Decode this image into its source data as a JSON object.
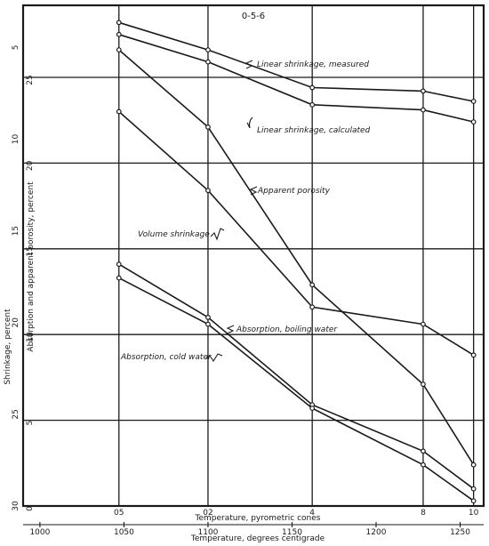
{
  "chart_data": {
    "type": "line",
    "title": "0-5-6",
    "xlabel_top": "Temperature, pyrometric cones",
    "xlabel_bottom": "Temperature, degrees centigrade",
    "ylabel_shrinkage": "Shrinkage, percent",
    "ylabel_absorption": "Absorption and apparent porosity, percent",
    "x_range": [
      990,
      1264
    ],
    "cone_ticks": [
      {
        "label": "05",
        "x": 1047
      },
      {
        "label": "02",
        "x": 1100
      },
      {
        "label": "4",
        "x": 1162
      },
      {
        "label": "8",
        "x": 1228
      },
      {
        "label": "10",
        "x": 1258
      }
    ],
    "temp_ticks": [
      "1000",
      "1050",
      "1100",
      "1150",
      "1200",
      "1250"
    ],
    "absorption_ticks": [
      "0",
      "5",
      "10",
      "15",
      "20",
      "25"
    ],
    "absorption_range": [
      0,
      29.2
    ],
    "shrinkage_ticks": [
      "5",
      "10",
      "15",
      "20",
      "25",
      "30"
    ],
    "shrinkage_range": [
      2.7,
      30.0
    ],
    "grid": true,
    "series": [
      {
        "name": "Linear shrinkage, measured",
        "scale": "absorption",
        "x": [
          1047,
          1100,
          1162,
          1228,
          1258
        ],
        "y": [
          28.2,
          26.6,
          24.4,
          24.2,
          23.6
        ]
      },
      {
        "name": "Linear shrinkage, calculated",
        "scale": "absorption",
        "x": [
          1047,
          1100,
          1162,
          1228,
          1258
        ],
        "y": [
          27.5,
          25.9,
          23.4,
          23.1,
          22.4
        ]
      },
      {
        "name": "Apparent porosity",
        "scale": "absorption",
        "x": [
          1047,
          1100,
          1162,
          1228,
          1258
        ],
        "y": [
          26.6,
          22.1,
          12.9,
          7.1,
          2.4
        ]
      },
      {
        "name": "Volume shrinkage",
        "scale": "absorption",
        "x": [
          1047,
          1100,
          1162,
          1228,
          1258
        ],
        "y": [
          23.0,
          18.4,
          11.6,
          10.6,
          8.8
        ]
      },
      {
        "name": "Absorption, boiling water",
        "scale": "absorption",
        "x": [
          1047,
          1100,
          1162,
          1228,
          1258
        ],
        "y": [
          14.1,
          11.0,
          5.9,
          3.2,
          1.0
        ]
      },
      {
        "name": "Absorption, cold water",
        "scale": "absorption",
        "x": [
          1047,
          1100,
          1162,
          1228,
          1258
        ],
        "y": [
          13.3,
          10.6,
          5.7,
          2.4,
          0.3
        ]
      }
    ],
    "annotations": [
      {
        "text": "Linear shrinkage, measured",
        "series": 0
      },
      {
        "text": "Linear shrinkage, calculated",
        "series": 1
      },
      {
        "text": "Apparent porosity",
        "series": 2
      },
      {
        "text": "Volume shrinkage",
        "series": 3
      },
      {
        "text": "Absorption, boiling water",
        "series": 4
      },
      {
        "text": "Absorption, cold water",
        "series": 5
      }
    ]
  }
}
